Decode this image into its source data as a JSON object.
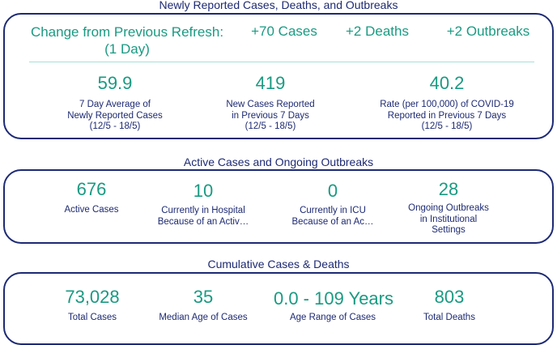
{
  "sections": {
    "newly": {
      "title": "Newly Reported Cases, Deaths, and Outbreaks",
      "change_label_1": "Change from Previous Refresh:",
      "change_label_2": "(1 Day)",
      "cases_change": "+70 Cases",
      "deaths_change": "+2 Deaths",
      "outbreaks_change": "+2 Outbreaks",
      "metrics": [
        {
          "value": "59.9",
          "lines": [
            "7 Day Average of",
            "Newly Reported Cases",
            "(12/5 - 18/5)"
          ]
        },
        {
          "value": "419",
          "lines": [
            "New Cases Reported",
            "in Previous 7 Days",
            "(12/5 - 18/5)"
          ]
        },
        {
          "value": "40.2",
          "lines": [
            "Rate (per 100,000) of COVID-19",
            "Reported in Previous 7 Days",
            "(12/5 - 18/5)"
          ]
        }
      ]
    },
    "active": {
      "title": "Active Cases and Ongoing Outbreaks",
      "metrics": [
        {
          "value": "676",
          "lines": [
            "Active Cases"
          ]
        },
        {
          "value": "10",
          "lines": [
            "Currently in Hospital",
            "Because of an Activ…"
          ]
        },
        {
          "value": "0",
          "lines": [
            "Currently in ICU",
            "Because of an Ac…"
          ]
        },
        {
          "value": "28",
          "lines": [
            "Ongoing Outbreaks",
            "in Institutional",
            "Settings"
          ]
        }
      ]
    },
    "cumulative": {
      "title": "Cumulative Cases & Deaths",
      "metrics": [
        {
          "value": "73,028",
          "lines": [
            "Total Cases"
          ]
        },
        {
          "value": "35",
          "lines": [
            "Median Age of Cases"
          ]
        },
        {
          "value": "0.0 - 109 Years",
          "lines": [
            "Age Range of Cases"
          ]
        },
        {
          "value": "803",
          "lines": [
            "Total Deaths"
          ]
        }
      ]
    }
  },
  "colors": {
    "navy": "#1d2a73",
    "teal": "#1a9a82",
    "divider": "#a7dfd6"
  }
}
